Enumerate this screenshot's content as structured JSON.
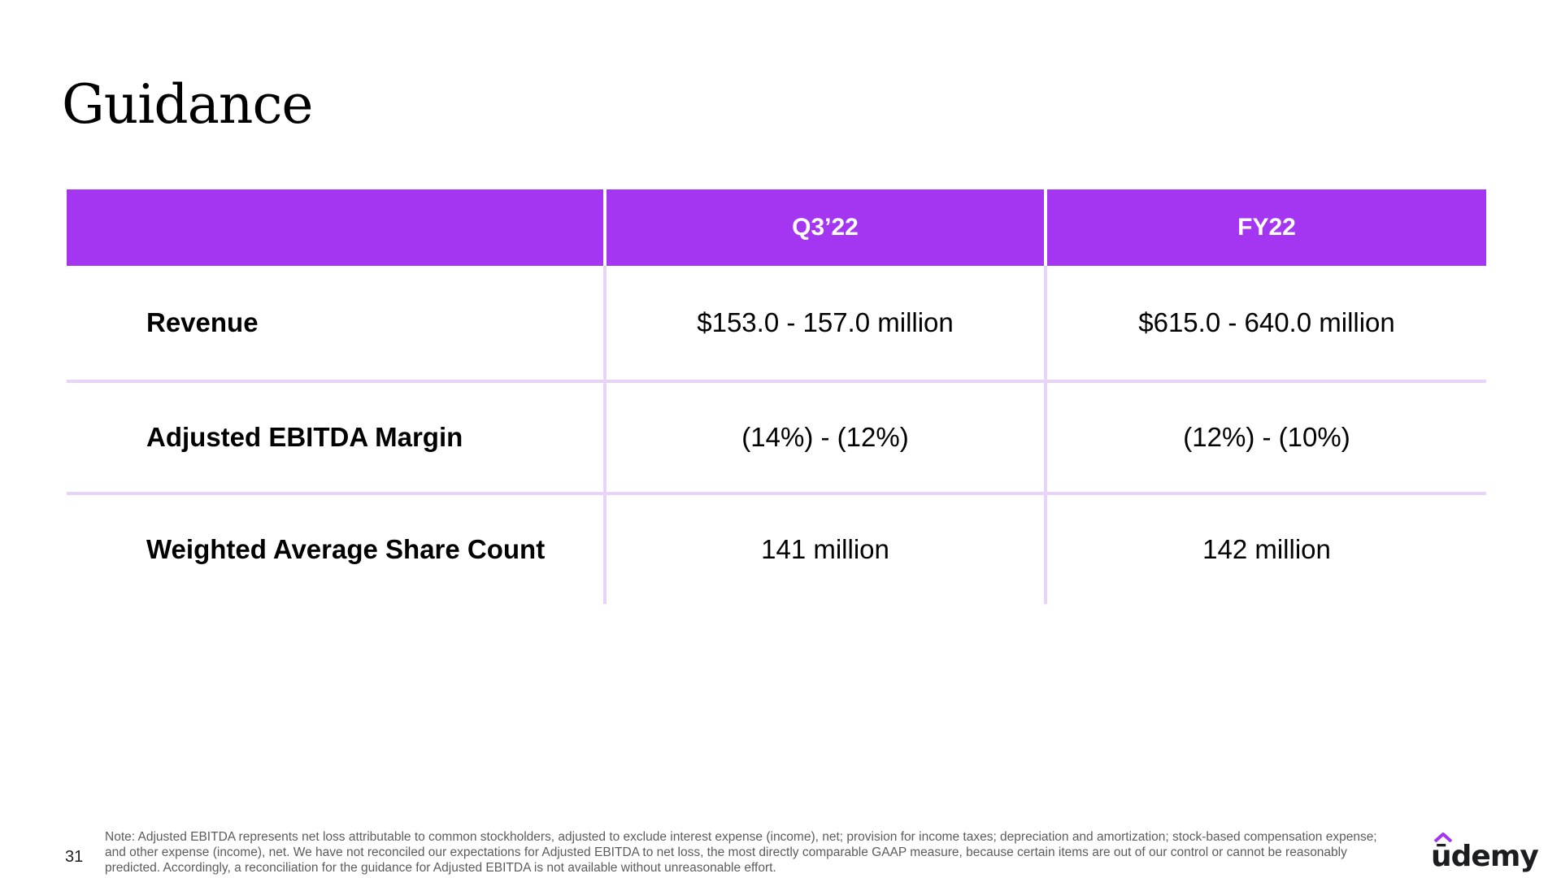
{
  "slide": {
    "title": "Guidance",
    "page_number": "31"
  },
  "table": {
    "columns": [
      "",
      "Q3’22",
      "FY22"
    ],
    "rows": [
      {
        "label": "Revenue",
        "q3": "$153.0 - 157.0 million",
        "fy": "$615.0 - 640.0 million"
      },
      {
        "label": "Adjusted EBITDA Margin",
        "q3": "(14%) - (12%)",
        "fy": "(12%) - (10%)"
      },
      {
        "label": "Weighted Average Share Count",
        "q3": "141 million",
        "fy": "142 million"
      }
    ]
  },
  "footnote": "Note: Adjusted EBITDA represents net loss attributable to common stockholders, adjusted to exclude interest expense (income), net; provision for income taxes; depreciation and amortization; stock-based compensation expense; and other expense (income), net. We have not reconciled our expectations for Adjusted EBITDA to net loss, the most directly comparable GAAP measure, because certain items are out of our control or cannot be reasonably predicted. Accordingly, a reconciliation for the guidance for Adjusted EBITDA is not available without unreasonable effort.",
  "logo": {
    "text": "ūdemy",
    "icon": "udemy-logo-icon"
  },
  "colors": {
    "header_bg": "#a435f0",
    "grid_line": "#e8d4f8",
    "text": "#000000"
  }
}
